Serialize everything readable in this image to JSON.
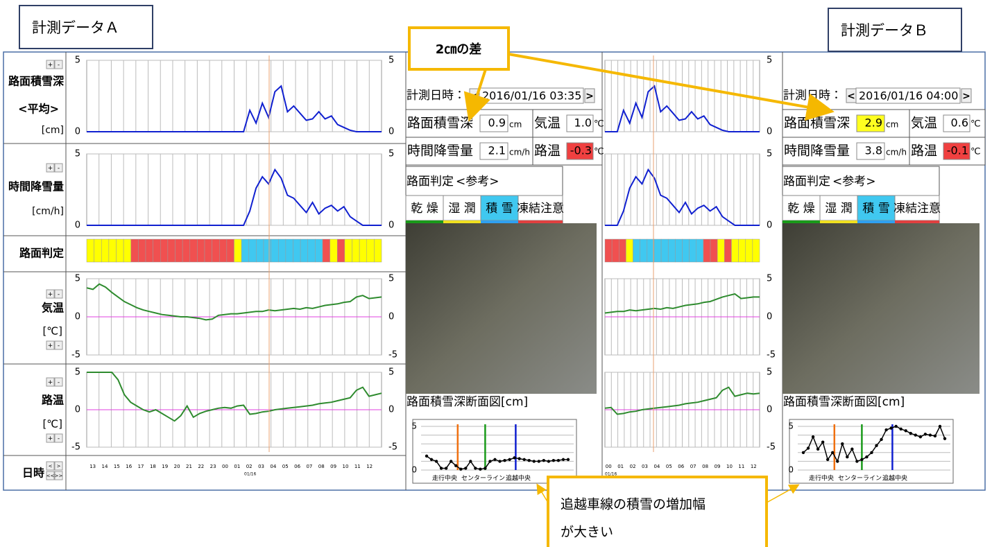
{
  "panel_a": {
    "title": "計測データＡ",
    "row_labels": {
      "snow_depth": "路面積雪深",
      "average": "<平均>",
      "depth_unit": "[cm]",
      "snowfall": "時間降雪量",
      "snowfall_unit": "[cm/h]",
      "judgment": "路面判定",
      "air_temp": "気温",
      "air_unit": "[℃]",
      "road_temp": "路温",
      "road_unit": "[℃]",
      "datetime": "日時"
    },
    "buttons": {
      "plus": "+",
      "minus": "-",
      "prev": "<",
      "next": ">",
      "prev_day": "<<",
      "next_day": ">>"
    },
    "charts": {
      "snow_depth": {
        "ylim": [
          0,
          5
        ],
        "yticks": [
          0,
          5
        ],
        "color": "#1020d0",
        "values": [
          0,
          0,
          0,
          0,
          0,
          0,
          0,
          0,
          0,
          0,
          0,
          0,
          0,
          0,
          0,
          0,
          0,
          0,
          0,
          0,
          0,
          0,
          0,
          0,
          0,
          0,
          1.5,
          0.6,
          2.0,
          1.0,
          2.8,
          3.2,
          1.4,
          1.8,
          1.3,
          0.8,
          0.9,
          1.4,
          0.9,
          1.1,
          0.5,
          0.3,
          0.1,
          0,
          0,
          0,
          0,
          0
        ]
      },
      "snowfall": {
        "ylim": [
          0,
          5
        ],
        "yticks": [
          0,
          5
        ],
        "color": "#1020d0",
        "values": [
          0,
          0,
          0,
          0,
          0,
          0,
          0,
          0,
          0,
          0,
          0,
          0,
          0,
          0,
          0,
          0,
          0,
          0,
          0,
          0,
          0,
          0,
          0,
          0,
          0,
          0,
          1.0,
          2.6,
          3.4,
          2.9,
          3.9,
          3.3,
          2.1,
          1.9,
          1.4,
          0.9,
          1.6,
          0.8,
          1.2,
          1.4,
          1.0,
          1.3,
          0.6,
          0.3,
          0,
          0,
          0,
          0
        ]
      },
      "air_temp": {
        "ylim": [
          -5,
          5
        ],
        "yticks": [
          -5,
          0,
          5
        ],
        "color": "#2e8b2e",
        "values": [
          3.8,
          3.6,
          4.3,
          3.9,
          3.2,
          2.6,
          2.0,
          1.6,
          1.2,
          0.9,
          0.7,
          0.5,
          0.3,
          0.2,
          0.1,
          0.0,
          0.0,
          -0.1,
          -0.2,
          -0.4,
          -0.3,
          0.2,
          0.3,
          0.4,
          0.4,
          0.5,
          0.6,
          0.7,
          0.7,
          0.9,
          0.8,
          0.9,
          1.0,
          1.1,
          1.0,
          1.2,
          1.1,
          1.3,
          1.5,
          1.6,
          1.7,
          1.9,
          2.0,
          2.6,
          2.8,
          2.4,
          2.5,
          2.6
        ]
      },
      "road_temp": {
        "ylim": [
          -5,
          5
        ],
        "yticks": [
          -5,
          0,
          5
        ],
        "color": "#2e8b2e",
        "values": [
          5,
          5,
          5,
          5,
          5,
          4.0,
          2.0,
          1.0,
          0.5,
          0.0,
          -0.3,
          0.0,
          -0.5,
          -1.0,
          -1.5,
          -0.8,
          0.5,
          -1.0,
          -0.5,
          -0.2,
          0.0,
          0.2,
          0.3,
          0.2,
          0.5,
          0.6,
          -0.6,
          -0.5,
          -0.3,
          -0.2,
          0.0,
          0.1,
          0.2,
          0.3,
          0.4,
          0.5,
          0.6,
          0.8,
          0.9,
          1.0,
          1.2,
          1.4,
          1.6,
          2.6,
          3.0,
          1.8,
          2.0,
          2.2
        ]
      }
    },
    "judgment_cells": [
      "#ffff00",
      "#ffff00",
      "#ffff00",
      "#ffff00",
      "#ffff00",
      "#ffff00",
      "#f05050",
      "#f05050",
      "#f05050",
      "#f05050",
      "#f05050",
      "#f05050",
      "#f05050",
      "#f05050",
      "#f05050",
      "#f05050",
      "#f05050",
      "#f05050",
      "#f05050",
      "#f05050",
      "#ffff00",
      "#40c8f0",
      "#40c8f0",
      "#40c8f0",
      "#40c8f0",
      "#40c8f0",
      "#40c8f0",
      "#40c8f0",
      "#40c8f0",
      "#40c8f0",
      "#40c8f0",
      "#40c8f0",
      "#f05050",
      "#ffff00",
      "#f05050",
      "#ffff00",
      "#ffff00",
      "#ffff00",
      "#ffff00",
      "#ffff00"
    ],
    "time_labels": [
      "13",
      "14",
      "15",
      "16",
      "17",
      "18",
      "19",
      "20",
      "21",
      "22",
      "23",
      "00",
      "01",
      "02",
      "03",
      "04",
      "05",
      "06",
      "07",
      "08",
      "09",
      "10",
      "11",
      "12"
    ],
    "date_label": "01/16",
    "info": {
      "datetime_label": "計測日時：",
      "datetime": "2016/01/16 03:35",
      "depth_label": "路面積雪深",
      "depth": "0.9",
      "depth_unit": "cm",
      "air_label": "気温",
      "air": "1.0",
      "air_unit": "℃",
      "snowfall_label": "時間降雪量",
      "snowfall": "2.1",
      "snowfall_unit": "cm/h",
      "road_label": "路温",
      "road": "-0.3",
      "road_unit": "℃",
      "judgment_label": "路面判定",
      "reference": "<参考>",
      "states": [
        "乾 燥",
        "湿 潤",
        "積 雪",
        "凍結注意"
      ]
    },
    "cross_section": {
      "title": "路面積雪深断面図[cm]",
      "ylim": [
        0,
        5
      ],
      "yticks": [
        0,
        5
      ],
      "values": [
        1.6,
        1.2,
        1.0,
        0.2,
        0.2,
        1.0,
        0.5,
        0.1,
        0.2,
        1.0,
        0.2,
        0.1,
        0.2,
        1.0,
        1.2,
        1.0,
        1.1,
        1.2,
        1.4,
        1.3,
        1.2,
        1.1,
        1.0,
        1.0,
        1.1,
        1.0,
        1.1,
        1.1,
        1.2,
        1.2
      ],
      "markers": [
        "走行中央",
        "センターライン",
        "追越中央"
      ]
    }
  },
  "panel_b": {
    "title": "計測データＢ",
    "charts": {
      "snow_depth": {
        "ylim": [
          0,
          5
        ],
        "yticks": [
          0,
          5
        ],
        "color": "#1020d0",
        "values": [
          0,
          0,
          0,
          1.5,
          0.6,
          2.0,
          1.0,
          2.8,
          3.2,
          1.4,
          1.8,
          1.3,
          0.8,
          0.9,
          1.4,
          0.9,
          1.1,
          0.5,
          0.3,
          0.1,
          0,
          0,
          0,
          0,
          0,
          0
        ]
      },
      "snowfall": {
        "ylim": [
          0,
          5
        ],
        "yticks": [
          0,
          5
        ],
        "color": "#1020d0",
        "values": [
          0,
          0,
          0,
          1.0,
          2.6,
          3.4,
          2.9,
          3.9,
          3.3,
          2.1,
          1.9,
          1.4,
          0.9,
          1.6,
          0.8,
          1.2,
          1.4,
          1.0,
          1.3,
          0.6,
          0.3,
          0,
          0,
          0,
          0,
          0
        ]
      },
      "air_temp": {
        "ylim": [
          -5,
          5
        ],
        "yticks": [
          -5,
          0,
          5
        ],
        "color": "#2e8b2e",
        "values": [
          0.5,
          0.6,
          0.7,
          0.7,
          0.9,
          0.8,
          0.9,
          1.0,
          1.1,
          1.0,
          1.2,
          1.1,
          1.3,
          1.5,
          1.6,
          1.7,
          1.9,
          2.0,
          2.3,
          2.6,
          2.8,
          3.0,
          2.4,
          2.5,
          2.6,
          2.6
        ]
      },
      "road_temp": {
        "ylim": [
          -5,
          5
        ],
        "yticks": [
          -5,
          0,
          5
        ],
        "color": "#2e8b2e",
        "values": [
          0.2,
          0.3,
          -0.6,
          -0.5,
          -0.3,
          -0.2,
          0.0,
          0.1,
          0.2,
          0.3,
          0.4,
          0.5,
          0.6,
          0.8,
          0.9,
          1.0,
          1.2,
          1.4,
          1.6,
          2.6,
          3.0,
          1.8,
          2.0,
          2.2,
          2.1,
          2.2
        ]
      }
    },
    "judgment_cells": [
      "#f05050",
      "#f05050",
      "#f05050",
      "#ffff00",
      "#40c8f0",
      "#40c8f0",
      "#40c8f0",
      "#40c8f0",
      "#40c8f0",
      "#40c8f0",
      "#40c8f0",
      "#40c8f0",
      "#40c8f0",
      "#40c8f0",
      "#f05050",
      "#f05050",
      "#ffff00",
      "#f05050",
      "#ffff00",
      "#ffff00",
      "#ffff00",
      "#ffff00"
    ],
    "time_labels": [
      "00",
      "01",
      "02",
      "03",
      "04",
      "05",
      "06",
      "07",
      "08",
      "09",
      "10",
      "11",
      "12"
    ],
    "date_label": "01/16",
    "info": {
      "datetime_label": "計測日時：",
      "datetime": "2016/01/16 04:00",
      "depth_label": "路面積雪深",
      "depth": "2.9",
      "depth_unit": "cm",
      "air_label": "気温",
      "air": "0.6",
      "air_unit": "℃",
      "snowfall_label": "時間降雪量",
      "snowfall": "3.8",
      "snowfall_unit": "cm/h",
      "road_label": "路温",
      "road": "-0.1",
      "road_unit": "℃",
      "judgment_label": "路面判定",
      "reference": "<参考>",
      "states": [
        "乾 燥",
        "湿 潤",
        "積 雪",
        "凍結注意"
      ]
    },
    "cross_section": {
      "title": "路面積雪深断面図[cm]",
      "ylim": [
        0,
        5
      ],
      "yticks": [
        0,
        5
      ],
      "values": [
        2.0,
        2.5,
        3.8,
        2.4,
        3.2,
        1.2,
        2.0,
        1.0,
        3.0,
        1.5,
        2.4,
        1.0,
        1.2,
        1.5,
        2.0,
        2.8,
        3.5,
        4.6,
        4.8,
        5.0,
        4.7,
        4.5,
        4.2,
        4.0,
        3.8,
        4.1,
        4.0,
        3.9,
        5.0,
        3.6
      ],
      "markers": [
        "走行中央",
        "センターライン",
        "追越中央"
      ]
    }
  },
  "callouts": {
    "difference": "2㎝の差",
    "increase": [
      "追越車線の積雪の増加幅",
      "が大きい"
    ]
  }
}
